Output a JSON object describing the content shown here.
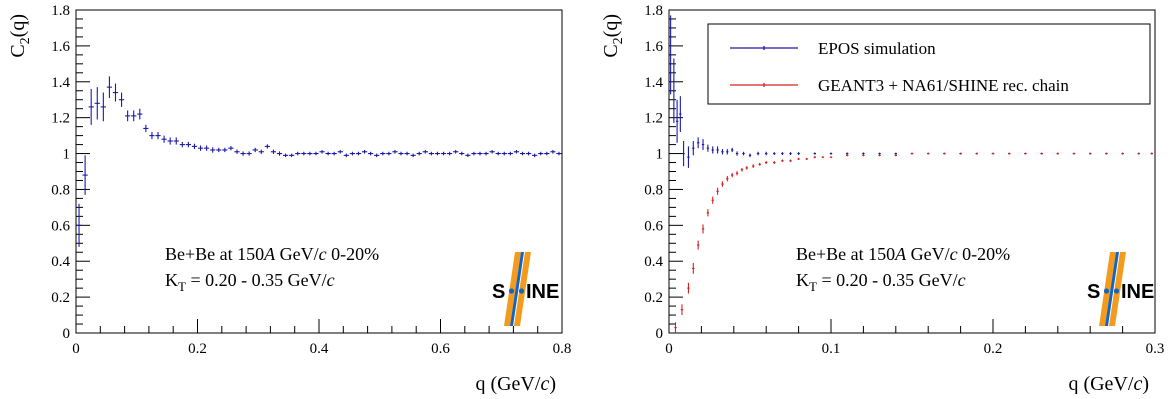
{
  "chart_data": [
    {
      "type": "scatter",
      "panel": "left",
      "title": "",
      "ylabel_main": "C",
      "ylabel_sub": "2",
      "ylabel_tail": "(q)",
      "xlabel_main": "q (GeV/",
      "xlabel_c": "c",
      "xlabel_tail": ")",
      "xlim": [
        0,
        0.8
      ],
      "ylim": [
        0,
        1.8
      ],
      "xticks": [
        0,
        0.2,
        0.4,
        0.6,
        0.8
      ],
      "xtick_labels": [
        "0",
        "0.2",
        "0.4",
        "0.6",
        "0.8"
      ],
      "yticks": [
        0,
        0.2,
        0.4,
        0.6,
        0.8,
        1,
        1.2,
        1.4,
        1.6,
        1.8
      ],
      "ytick_labels": [
        "0",
        "0.2",
        "0.4",
        "0.6",
        "0.8",
        "1",
        "1.2",
        "1.4",
        "1.6",
        "1.8"
      ],
      "grid": false,
      "annotation": {
        "line1_a": "Be+Be at 150",
        "line1_b": "A",
        "line1_c": " GeV/",
        "line1_d": "c",
        "line1_e": " 0-20%",
        "line2_a": "K",
        "line2_b": "T",
        "line2_c": " = 0.20 - 0.35 GeV/",
        "line2_d": "c"
      },
      "series": [
        {
          "color": "#1a1aa8",
          "x": [
            0.005,
            0.015,
            0.025,
            0.035,
            0.045,
            0.055,
            0.065,
            0.075,
            0.085,
            0.095,
            0.105,
            0.115,
            0.125,
            0.135,
            0.145,
            0.155,
            0.165,
            0.175,
            0.185,
            0.195,
            0.205,
            0.215,
            0.225,
            0.235,
            0.245,
            0.255,
            0.265,
            0.275,
            0.285,
            0.295,
            0.305,
            0.315,
            0.325,
            0.335,
            0.345,
            0.355,
            0.365,
            0.375,
            0.385,
            0.395,
            0.405,
            0.415,
            0.425,
            0.435,
            0.445,
            0.455,
            0.465,
            0.475,
            0.485,
            0.495,
            0.505,
            0.515,
            0.525,
            0.535,
            0.545,
            0.555,
            0.565,
            0.575,
            0.585,
            0.595,
            0.605,
            0.615,
            0.625,
            0.635,
            0.645,
            0.655,
            0.665,
            0.675,
            0.685,
            0.695,
            0.705,
            0.715,
            0.725,
            0.735,
            0.745,
            0.755,
            0.765,
            0.775,
            0.785,
            0.795
          ],
          "y": [
            0.6,
            0.88,
            1.26,
            1.28,
            1.26,
            1.37,
            1.34,
            1.3,
            1.21,
            1.21,
            1.22,
            1.14,
            1.1,
            1.1,
            1.08,
            1.07,
            1.07,
            1.05,
            1.05,
            1.04,
            1.03,
            1.03,
            1.02,
            1.02,
            1.02,
            1.03,
            1.01,
            1.0,
            1.0,
            1.02,
            1.01,
            1.04,
            1.01,
            1.0,
            0.99,
            0.99,
            1.0,
            1.0,
            1.0,
            1.0,
            1.01,
            1.0,
            1.0,
            1.01,
            0.99,
            1.0,
            1.0,
            1.01,
            1.0,
            0.99,
            1.0,
            1.0,
            1.01,
            1.0,
            1.0,
            0.99,
            1.0,
            1.01,
            1.0,
            1.0,
            1.0,
            1.0,
            1.01,
            1.0,
            0.99,
            1.0,
            1.0,
            1.0,
            1.01,
            1.0,
            1.0,
            1.0,
            1.01,
            1.0,
            1.0,
            0.99,
            1.0,
            1.0,
            1.01,
            1.0
          ],
          "yerr": [
            0.12,
            0.11,
            0.1,
            0.09,
            0.08,
            0.06,
            0.05,
            0.04,
            0.03,
            0.03,
            0.03,
            0.02,
            0.02,
            0.02,
            0.02,
            0.02,
            0.02,
            0.015,
            0.015,
            0.015,
            0.015,
            0.015,
            0.015,
            0.012,
            0.012,
            0.012,
            0.012,
            0.012,
            0.012,
            0.012,
            0.012,
            0.012,
            0.012,
            0.012,
            0.01,
            0.01,
            0.01,
            0.01,
            0.01,
            0.01,
            0.01,
            0.01,
            0.01,
            0.01,
            0.01,
            0.01,
            0.01,
            0.01,
            0.01,
            0.01,
            0.01,
            0.01,
            0.01,
            0.01,
            0.01,
            0.01,
            0.01,
            0.01,
            0.01,
            0.01,
            0.01,
            0.01,
            0.01,
            0.01,
            0.01,
            0.01,
            0.01,
            0.01,
            0.01,
            0.01,
            0.01,
            0.01,
            0.01,
            0.01,
            0.01,
            0.01,
            0.01,
            0.01,
            0.01,
            0.01
          ]
        }
      ]
    },
    {
      "type": "scatter",
      "panel": "right",
      "title": "",
      "ylabel_main": "C",
      "ylabel_sub": "2",
      "ylabel_tail": "(q)",
      "xlabel_main": "q (GeV/",
      "xlabel_c": "c",
      "xlabel_tail": ")",
      "xlim": [
        0,
        0.3
      ],
      "ylim": [
        0,
        1.8
      ],
      "xticks": [
        0,
        0.1,
        0.2,
        0.3
      ],
      "xtick_labels": [
        "0",
        "0.1",
        "0.2",
        "0.3"
      ],
      "yticks": [
        0,
        0.2,
        0.4,
        0.6,
        0.8,
        1,
        1.2,
        1.4,
        1.6,
        1.8
      ],
      "ytick_labels": [
        "0",
        "0.2",
        "0.4",
        "0.6",
        "0.8",
        "1",
        "1.2",
        "1.4",
        "1.6",
        "1.8"
      ],
      "grid": false,
      "legend_position": "top-right",
      "annotation": {
        "line1_a": "Be+Be at 150",
        "line1_b": "A",
        "line1_c": " GeV/",
        "line1_d": "c",
        "line1_e": " 0-20%",
        "line2_a": "K",
        "line2_b": "T",
        "line2_c": " = 0.20 - 0.35 GeV/",
        "line2_d": "c"
      },
      "series": [
        {
          "name": "EPOS simulation",
          "color": "#1a1aa8",
          "x": [
            0.001,
            0.003,
            0.005,
            0.007,
            0.009,
            0.012,
            0.015,
            0.018,
            0.021,
            0.024,
            0.027,
            0.03,
            0.033,
            0.036,
            0.039,
            0.042,
            0.046,
            0.05,
            0.055,
            0.06,
            0.065,
            0.07,
            0.075,
            0.08,
            0.09,
            0.1,
            0.11,
            0.12,
            0.13,
            0.14,
            0.15,
            0.16,
            0.17,
            0.18,
            0.19,
            0.2,
            0.21,
            0.22,
            0.23,
            0.24,
            0.25,
            0.26,
            0.27,
            0.28,
            0.29,
            0.298
          ],
          "y": [
            1.55,
            1.35,
            1.18,
            1.22,
            1.0,
            0.98,
            1.03,
            1.06,
            1.05,
            1.03,
            1.02,
            1.02,
            1.01,
            1.01,
            1.02,
            1.0,
            1.0,
            0.99,
            1.0,
            1.0,
            1.0,
            1.0,
            1.0,
            1.0,
            1.0,
            1.0,
            1.0,
            1.0,
            1.0,
            1.0,
            1.0,
            1.0,
            1.0,
            1.0,
            1.0,
            1.0,
            1.0,
            1.0,
            1.0,
            1.0,
            1.0,
            1.0,
            1.0,
            1.0,
            1.0,
            1.0
          ],
          "yerr": [
            0.22,
            0.18,
            0.12,
            0.1,
            0.07,
            0.06,
            0.04,
            0.03,
            0.03,
            0.02,
            0.02,
            0.02,
            0.015,
            0.015,
            0.012,
            0.012,
            0.01,
            0.01,
            0.01,
            0.01,
            0.008,
            0.008,
            0.008,
            0.008,
            0.006,
            0.006,
            0.006,
            0.006,
            0.005,
            0.005,
            0.005,
            0.005,
            0.005,
            0.005,
            0.005,
            0.005,
            0.005,
            0.005,
            0.005,
            0.005,
            0.005,
            0.005,
            0.005,
            0.005,
            0.005,
            0.005
          ]
        },
        {
          "name": "GEANT3 + NA61/SHINE rec. chain",
          "color": "#d62020",
          "x": [
            0.004,
            0.008,
            0.012,
            0.015,
            0.018,
            0.021,
            0.024,
            0.027,
            0.03,
            0.033,
            0.036,
            0.039,
            0.042,
            0.045,
            0.048,
            0.052,
            0.056,
            0.06,
            0.065,
            0.07,
            0.075,
            0.08,
            0.085,
            0.09,
            0.095,
            0.1,
            0.11,
            0.12,
            0.13,
            0.14,
            0.15,
            0.16,
            0.17,
            0.18,
            0.19,
            0.2,
            0.21,
            0.22,
            0.23,
            0.24,
            0.25,
            0.26,
            0.27,
            0.28,
            0.29,
            0.298
          ],
          "y": [
            0.03,
            0.13,
            0.25,
            0.36,
            0.49,
            0.58,
            0.67,
            0.74,
            0.79,
            0.83,
            0.86,
            0.88,
            0.89,
            0.91,
            0.92,
            0.93,
            0.94,
            0.95,
            0.95,
            0.96,
            0.96,
            0.97,
            0.97,
            0.98,
            0.98,
            0.98,
            0.99,
            0.99,
            0.99,
            0.99,
            1.0,
            1.0,
            1.0,
            1.0,
            1.0,
            1.0,
            1.0,
            1.0,
            1.0,
            1.0,
            1.0,
            1.0,
            1.0,
            1.0,
            1.0,
            1.0
          ],
          "yerr": [
            0.03,
            0.03,
            0.03,
            0.03,
            0.025,
            0.025,
            0.02,
            0.02,
            0.02,
            0.015,
            0.015,
            0.012,
            0.012,
            0.01,
            0.01,
            0.01,
            0.008,
            0.008,
            0.008,
            0.007,
            0.007,
            0.006,
            0.006,
            0.006,
            0.005,
            0.005,
            0.005,
            0.005,
            0.005,
            0.005,
            0.004,
            0.004,
            0.004,
            0.004,
            0.004,
            0.004,
            0.004,
            0.004,
            0.004,
            0.004,
            0.004,
            0.004,
            0.004,
            0.004,
            0.004,
            0.004
          ]
        }
      ]
    }
  ],
  "logo": {
    "left_text": "S",
    "right_text": "INE",
    "colors": {
      "blue": "#1565c0",
      "orange": "#f29b1d"
    }
  }
}
